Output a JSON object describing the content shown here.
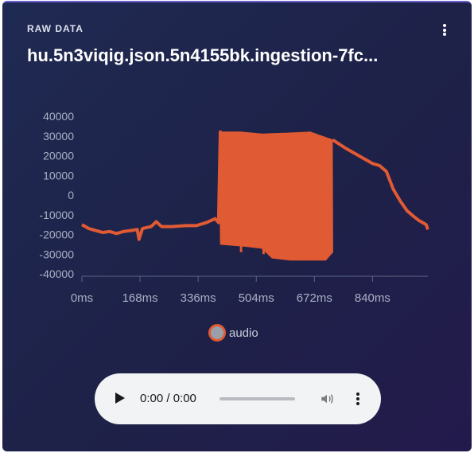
{
  "card": {
    "eyebrow": "RAW DATA",
    "title": "hu.5n3viqig.json.5n4155bk.ingestion-7fc..."
  },
  "colors": {
    "accent": "#e05a33",
    "card_background": "#1f2452",
    "axis_text": "#a9b0c4"
  },
  "icons": {
    "menu": "more-vertical-icon",
    "play": "play-icon",
    "volume": "volume-icon",
    "player_menu": "more-vertical-icon"
  },
  "chart_data": {
    "type": "line",
    "title": "",
    "xlabel": "",
    "ylabel": "",
    "x_ticks": [
      "0ms",
      "168ms",
      "336ms",
      "504ms",
      "672ms",
      "840ms"
    ],
    "x_tick_values": [
      0,
      168,
      336,
      504,
      672,
      840
    ],
    "y_ticks": [
      40000,
      30000,
      20000,
      10000,
      0,
      -10000,
      -20000,
      -30000,
      -40000
    ],
    "ylim": [
      -40000,
      40000
    ],
    "xlim": [
      0,
      1000
    ],
    "grid": false,
    "legend": "bottom-center",
    "series": [
      {
        "name": "audio",
        "color": "#e05a33",
        "points": [
          [
            0,
            -15000
          ],
          [
            20,
            -17000
          ],
          [
            40,
            -18000
          ],
          [
            60,
            -19000
          ],
          [
            80,
            -18500
          ],
          [
            100,
            -19500
          ],
          [
            120,
            -18500
          ],
          [
            140,
            -18000
          ],
          [
            160,
            -17500
          ],
          [
            165,
            -22500
          ],
          [
            175,
            -17000
          ],
          [
            200,
            -16000
          ],
          [
            215,
            -13500
          ],
          [
            230,
            -16000
          ],
          [
            260,
            -16000
          ],
          [
            300,
            -15500
          ],
          [
            330,
            -15500
          ],
          [
            360,
            -14000
          ],
          [
            385,
            -12000
          ],
          [
            395,
            -14000
          ],
          [
            400,
            32000
          ],
          [
            404,
            -25000
          ]
        ],
        "oscillation": {
          "x_range": [
            400,
            725
          ],
          "upper": [
            [
              400,
              32000
            ],
            [
              460,
              32000
            ],
            [
              520,
              31000
            ],
            [
              600,
              31500
            ],
            [
              660,
              32000
            ],
            [
              725,
              28000
            ]
          ],
          "lower": [
            [
              400,
              -25000
            ],
            [
              470,
              -26000
            ],
            [
              520,
              -27000
            ],
            [
              550,
              -32000
            ],
            [
              600,
              -33000
            ],
            [
              660,
              -33000
            ],
            [
              705,
              -33000
            ],
            [
              725,
              -29000
            ]
          ],
          "dips": [
            [
              460,
              -29000
            ],
            [
              525,
              -30000
            ],
            [
              545,
              -22000
            ]
          ]
        },
        "tail": [
          [
            725,
            28000
          ],
          [
            760,
            24000
          ],
          [
            800,
            20000
          ],
          [
            840,
            16000
          ],
          [
            860,
            15000
          ],
          [
            880,
            12000
          ],
          [
            900,
            3000
          ],
          [
            920,
            -3000
          ],
          [
            940,
            -8000
          ],
          [
            960,
            -11000
          ],
          [
            975,
            -13000
          ],
          [
            985,
            -14000
          ],
          [
            995,
            -15000
          ],
          [
            1000,
            -17500
          ]
        ]
      }
    ]
  },
  "legend": {
    "label": "audio"
  },
  "player": {
    "time": "0:00 / 0:00",
    "progress": 0
  }
}
